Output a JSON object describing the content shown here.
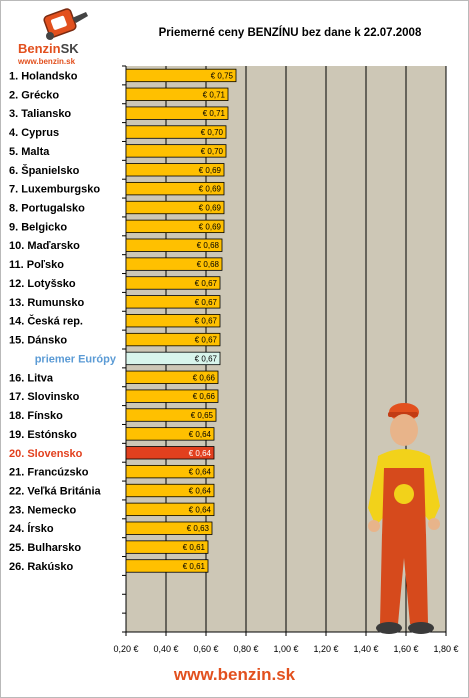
{
  "logo": {
    "brand": "Benzin",
    "suffix": "SK",
    "url": "www.benzin.sk"
  },
  "footer": {
    "url": "www.benzin.sk"
  },
  "colors": {
    "bar": "#ffc000",
    "highlight": "#e2401e",
    "average": "#d8f5ec",
    "plot_bg": "#cdc7b6",
    "label_red": "#e2401e",
    "label_blue": "#5b9bd5"
  },
  "chart_data": {
    "type": "bar",
    "orientation": "horizontal",
    "title": "Priemerné ceny BENZÍNU bez dane k 22.07.2008",
    "xlabel": "",
    "ylabel": "",
    "xlim": [
      0.2,
      1.8
    ],
    "xticks": [
      0.2,
      0.4,
      0.6,
      0.8,
      1.0,
      1.2,
      1.4,
      1.6,
      1.8
    ],
    "xtick_labels": [
      "0,20 €",
      "0,40 €",
      "0,60 €",
      "0,80 €",
      "1,00 €",
      "1,20 €",
      "1,40 €",
      "1,60 €",
      "1,80 €"
    ],
    "grid": true,
    "categories": [
      "1. Holandsko",
      "2. Grécko",
      "3. Taliansko",
      "4. Cyprus",
      "5. Malta",
      "6. Španielsko",
      "7. Luxemburgsko",
      "8. Portugalsko",
      "9. Belgicko",
      "10. Maďarsko",
      "11. Poľsko",
      "12. Lotyšsko",
      "13. Rumunsko",
      "14. Česká rep.",
      "15. Dánsko",
      "priemer Európy",
      "16. Litva",
      "17. Slovinsko",
      "18. Fínsko",
      "19. Estónsko",
      "20. Slovensko",
      "21. Francúzsko",
      "22. Veľká Británia",
      "23. Nemecko",
      "24. Írsko",
      "25. Bulharsko",
      "26. Rakúsko"
    ],
    "values": [
      0.75,
      0.71,
      0.71,
      0.7,
      0.7,
      0.69,
      0.69,
      0.69,
      0.69,
      0.68,
      0.68,
      0.67,
      0.67,
      0.67,
      0.67,
      0.67,
      0.66,
      0.66,
      0.65,
      0.64,
      0.64,
      0.64,
      0.64,
      0.64,
      0.63,
      0.61,
      0.61
    ],
    "value_labels": [
      "€ 0,75",
      "€ 0,71",
      "€ 0,71",
      "€ 0,70",
      "€ 0,70",
      "€ 0,69",
      "€ 0,69",
      "€ 0,69",
      "€ 0,69",
      "€ 0,68",
      "€ 0,68",
      "€ 0,67",
      "€ 0,67",
      "€ 0,67",
      "€ 0,67",
      "€ 0,67",
      "€ 0,66",
      "€ 0,66",
      "€ 0,65",
      "€ 0,64",
      "€ 0,64",
      "€ 0,64",
      "€ 0,64",
      "€ 0,64",
      "€ 0,63",
      "€ 0,61",
      "€ 0,61"
    ],
    "highlight_index": 20,
    "average_index": 15
  }
}
